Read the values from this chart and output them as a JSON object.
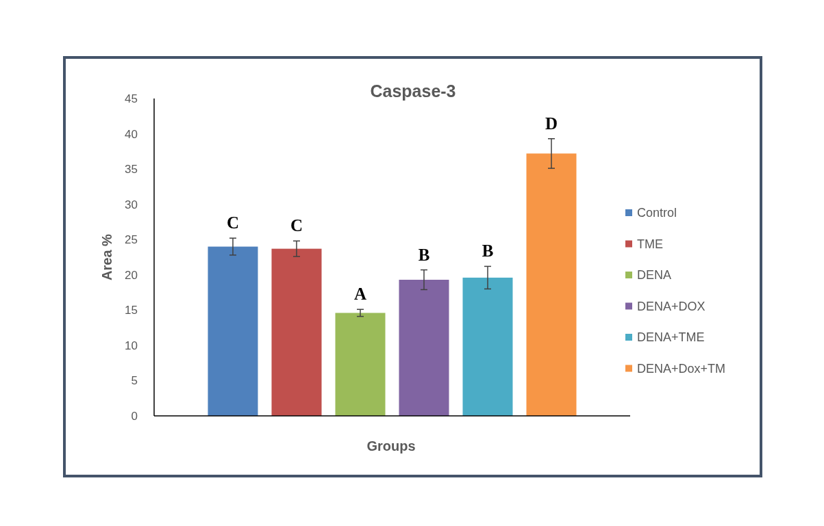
{
  "chart_data": {
    "type": "bar",
    "title": "Caspase-3",
    "xlabel": "Groups",
    "ylabel": "Area %",
    "categories": [
      null,
      null,
      null,
      null,
      null,
      null
    ],
    "series": [
      {
        "name": "Control",
        "color": "#4f81bd",
        "values": [
          24,
          null,
          null,
          null,
          null,
          null
        ],
        "errors": [
          1.2,
          null,
          null,
          null,
          null,
          null
        ]
      },
      {
        "name": "TME",
        "color": "#c0504d",
        "values": [
          null,
          23.7,
          null,
          null,
          null,
          null
        ],
        "errors": [
          null,
          1.1,
          null,
          null,
          null,
          null
        ]
      },
      {
        "name": "DENA",
        "color": "#9bbb59",
        "values": [
          null,
          null,
          14.6,
          null,
          null,
          null
        ],
        "errors": [
          null,
          null,
          0.5,
          null,
          null,
          null
        ]
      },
      {
        "name": "DENA+DOX",
        "color": "#8064a2",
        "values": [
          null,
          null,
          null,
          19.3,
          null,
          null
        ],
        "errors": [
          null,
          null,
          null,
          1.4,
          null,
          null
        ]
      },
      {
        "name": "DENA+TME",
        "color": "#4bacc6",
        "values": [
          null,
          null,
          null,
          null,
          19.6,
          null
        ],
        "errors": [
          null,
          null,
          null,
          null,
          1.6,
          null
        ]
      },
      {
        "name": "DENA+Dox+TM",
        "color": "#f79646",
        "values": [
          null,
          null,
          null,
          null,
          null,
          37.2
        ],
        "errors": [
          null,
          null,
          null,
          null,
          null,
          2.1
        ]
      }
    ],
    "annotations": [
      "C",
      "C",
      "A",
      "B",
      "B",
      "D"
    ],
    "ylim": [
      0,
      45
    ],
    "yticks": [
      0,
      5,
      10,
      15,
      20,
      25,
      30,
      35,
      40,
      45
    ],
    "legend": "right",
    "grid": false
  }
}
